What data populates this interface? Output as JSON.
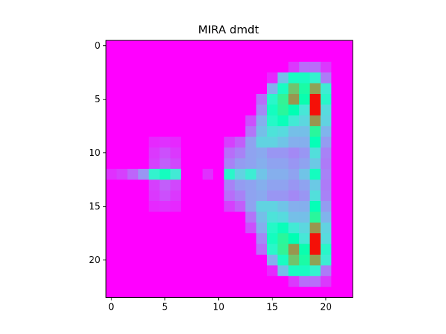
{
  "chart_data": {
    "type": "heatmap",
    "title": "MIRA dmdt",
    "xlabel": "",
    "ylabel": "",
    "colormap": "rainbow",
    "n_cols": 23,
    "n_rows": 24,
    "x_ticks": [
      0,
      5,
      10,
      15,
      20
    ],
    "x_tick_labels": [
      "0",
      "5",
      "10",
      "15",
      "20"
    ],
    "y_ticks": [
      0,
      5,
      10,
      15,
      20
    ],
    "y_tick_labels": [
      "0",
      "5",
      "10",
      "15",
      "20"
    ],
    "xlim": [
      -0.5,
      22.5
    ],
    "ylim": [
      23.5,
      -0.5
    ],
    "vmin": 0,
    "vmax": 1,
    "grid": false,
    "values": [
      [
        0,
        0,
        0,
        0,
        0,
        0,
        0,
        0,
        0,
        0,
        0,
        0,
        0,
        0,
        0,
        0,
        0,
        0,
        0,
        0,
        0,
        0,
        0
      ],
      [
        0,
        0,
        0,
        0,
        0,
        0,
        0,
        0,
        0,
        0,
        0,
        0,
        0,
        0,
        0,
        0,
        0,
        0,
        0,
        0,
        0,
        0,
        0
      ],
      [
        0,
        0,
        0,
        0,
        0,
        0,
        0,
        0,
        0,
        0,
        0,
        0,
        0,
        0,
        0,
        0,
        0,
        0.07,
        0.14,
        0.14,
        0.07,
        0,
        0
      ],
      [
        0,
        0,
        0,
        0,
        0,
        0,
        0,
        0,
        0,
        0,
        0,
        0,
        0,
        0,
        0,
        0.05,
        0.27,
        0.45,
        0.45,
        0.4,
        0.16,
        0,
        0
      ],
      [
        0,
        0,
        0,
        0,
        0,
        0,
        0,
        0,
        0,
        0,
        0,
        0,
        0,
        0,
        0,
        0.24,
        0.45,
        0.72,
        0.55,
        0.78,
        0.38,
        0,
        0
      ],
      [
        0,
        0,
        0,
        0,
        0,
        0,
        0,
        0,
        0,
        0,
        0,
        0,
        0,
        0,
        0.14,
        0.42,
        0.6,
        0.8,
        0.52,
        0.98,
        0.42,
        0,
        0
      ],
      [
        0,
        0,
        0,
        0,
        0,
        0,
        0,
        0,
        0,
        0,
        0,
        0,
        0,
        0,
        0.18,
        0.46,
        0.58,
        0.5,
        0.36,
        0.98,
        0.33,
        0,
        0
      ],
      [
        0,
        0,
        0,
        0,
        0,
        0,
        0,
        0,
        0,
        0,
        0,
        0,
        0,
        0.1,
        0.24,
        0.43,
        0.48,
        0.37,
        0.32,
        0.8,
        0.31,
        0,
        0
      ],
      [
        0,
        0,
        0,
        0,
        0,
        0,
        0,
        0,
        0,
        0,
        0,
        0,
        0,
        0.15,
        0.27,
        0.35,
        0.33,
        0.27,
        0.27,
        0.58,
        0.25,
        0,
        0
      ],
      [
        0,
        0,
        0,
        0,
        0.05,
        0.06,
        0.05,
        0,
        0,
        0,
        0,
        0.08,
        0.12,
        0.22,
        0.31,
        0.31,
        0.28,
        0.24,
        0.24,
        0.49,
        0.21,
        0,
        0
      ],
      [
        0,
        0,
        0,
        0,
        0.07,
        0.1,
        0.07,
        0,
        0,
        0,
        0,
        0.14,
        0.17,
        0.22,
        0.23,
        0.2,
        0.2,
        0.18,
        0.2,
        0.34,
        0.17,
        0,
        0
      ],
      [
        0,
        0,
        0,
        0,
        0.08,
        0.12,
        0.09,
        0,
        0,
        0,
        0,
        0.17,
        0.21,
        0.22,
        0.24,
        0.22,
        0.22,
        0.2,
        0.22,
        0.29,
        0.16,
        0,
        0
      ],
      [
        0.06,
        0.08,
        0.13,
        0.2,
        0.4,
        0.46,
        0.37,
        0,
        0,
        0.06,
        0,
        0.42,
        0.31,
        0.38,
        0.28,
        0.24,
        0.24,
        0.22,
        0.28,
        0.46,
        0.17,
        0,
        0
      ],
      [
        0,
        0,
        0,
        0,
        0.08,
        0.12,
        0.09,
        0,
        0,
        0,
        0,
        0.17,
        0.21,
        0.22,
        0.24,
        0.22,
        0.22,
        0.2,
        0.22,
        0.29,
        0.16,
        0,
        0
      ],
      [
        0,
        0,
        0,
        0,
        0.07,
        0.1,
        0.07,
        0,
        0,
        0,
        0,
        0.14,
        0.17,
        0.22,
        0.23,
        0.2,
        0.2,
        0.18,
        0.2,
        0.34,
        0.17,
        0,
        0
      ],
      [
        0,
        0,
        0,
        0,
        0.05,
        0.06,
        0.05,
        0,
        0,
        0,
        0,
        0.08,
        0.12,
        0.22,
        0.31,
        0.31,
        0.28,
        0.24,
        0.24,
        0.49,
        0.21,
        0,
        0
      ],
      [
        0,
        0,
        0,
        0,
        0,
        0,
        0,
        0,
        0,
        0,
        0,
        0,
        0,
        0.15,
        0.27,
        0.35,
        0.33,
        0.27,
        0.27,
        0.58,
        0.25,
        0,
        0
      ],
      [
        0,
        0,
        0,
        0,
        0,
        0,
        0,
        0,
        0,
        0,
        0,
        0,
        0,
        0.1,
        0.24,
        0.43,
        0.48,
        0.37,
        0.32,
        0.8,
        0.31,
        0,
        0
      ],
      [
        0,
        0,
        0,
        0,
        0,
        0,
        0,
        0,
        0,
        0,
        0,
        0,
        0,
        0,
        0.18,
        0.46,
        0.58,
        0.5,
        0.36,
        0.98,
        0.33,
        0,
        0
      ],
      [
        0,
        0,
        0,
        0,
        0,
        0,
        0,
        0,
        0,
        0,
        0,
        0,
        0,
        0,
        0.14,
        0.42,
        0.6,
        0.8,
        0.52,
        0.98,
        0.42,
        0,
        0
      ],
      [
        0,
        0,
        0,
        0,
        0,
        0,
        0,
        0,
        0,
        0,
        0,
        0,
        0,
        0,
        0,
        0.24,
        0.45,
        0.72,
        0.55,
        0.78,
        0.38,
        0,
        0
      ],
      [
        0,
        0,
        0,
        0,
        0,
        0,
        0,
        0,
        0,
        0,
        0,
        0,
        0,
        0,
        0,
        0.05,
        0.27,
        0.45,
        0.45,
        0.4,
        0.16,
        0,
        0
      ],
      [
        0,
        0,
        0,
        0,
        0,
        0,
        0,
        0,
        0,
        0,
        0,
        0,
        0,
        0,
        0,
        0,
        0,
        0.07,
        0.14,
        0.14,
        0.07,
        0,
        0
      ],
      [
        0,
        0,
        0,
        0,
        0,
        0,
        0,
        0,
        0,
        0,
        0,
        0,
        0,
        0,
        0,
        0,
        0,
        0,
        0,
        0,
        0,
        0,
        0
      ]
    ]
  }
}
